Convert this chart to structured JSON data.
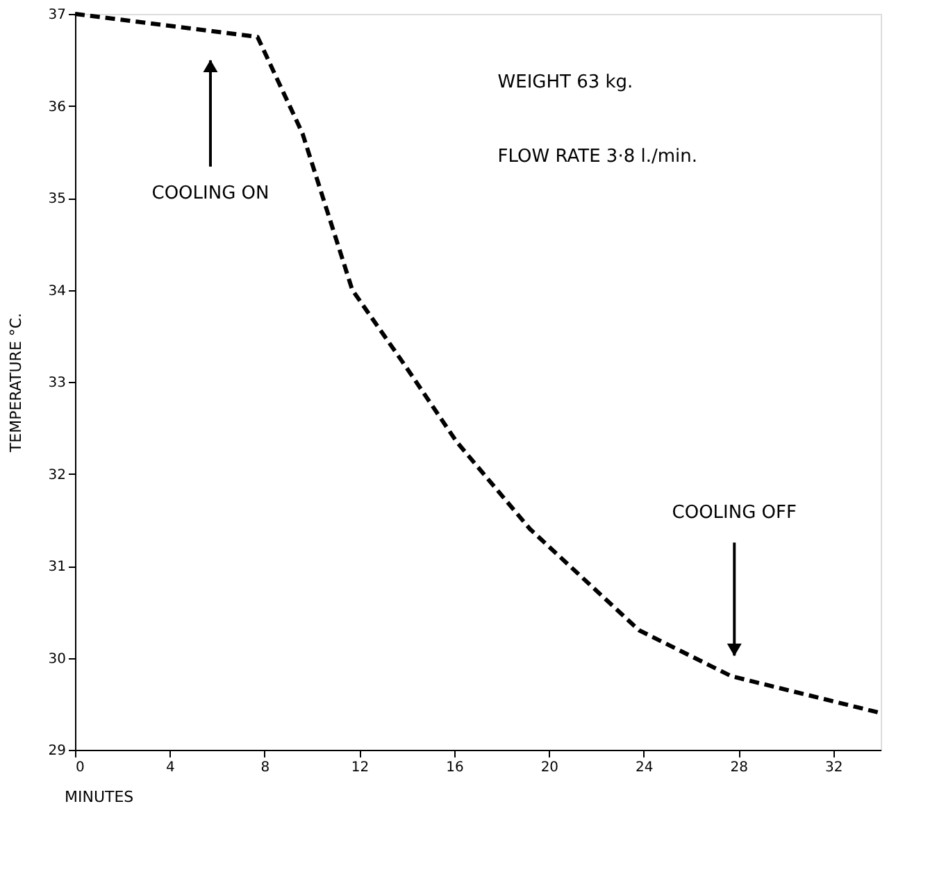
{
  "chart_data": {
    "type": "line",
    "xlabel": "MINUTES",
    "ylabel": "TEMPERATURE  °C.",
    "x": [
      0,
      7.7,
      9.6,
      11.7,
      14.0,
      16.1,
      19.2,
      23.8,
      27.7,
      34
    ],
    "series": [
      {
        "color": "#000000",
        "values": [
          37,
          36.75,
          35.7,
          34.0,
          33.15,
          32.35,
          31.4,
          30.3,
          29.8,
          29.4
        ]
      }
    ],
    "xlim": [
      0,
      34
    ],
    "xticks": [
      0,
      4,
      8,
      12,
      16,
      20,
      24,
      28,
      32
    ],
    "ylim": [
      29,
      37
    ],
    "yticks": [
      29,
      30,
      31,
      32,
      33,
      34,
      35,
      36,
      37
    ],
    "grid": false,
    "marker": "none",
    "line_style": "dashed",
    "annotations": [
      "WEIGHT 63 kg.",
      "FLOW RATE 3·8 l./min.",
      "COOLING ON",
      "COOLING OFF"
    ]
  }
}
